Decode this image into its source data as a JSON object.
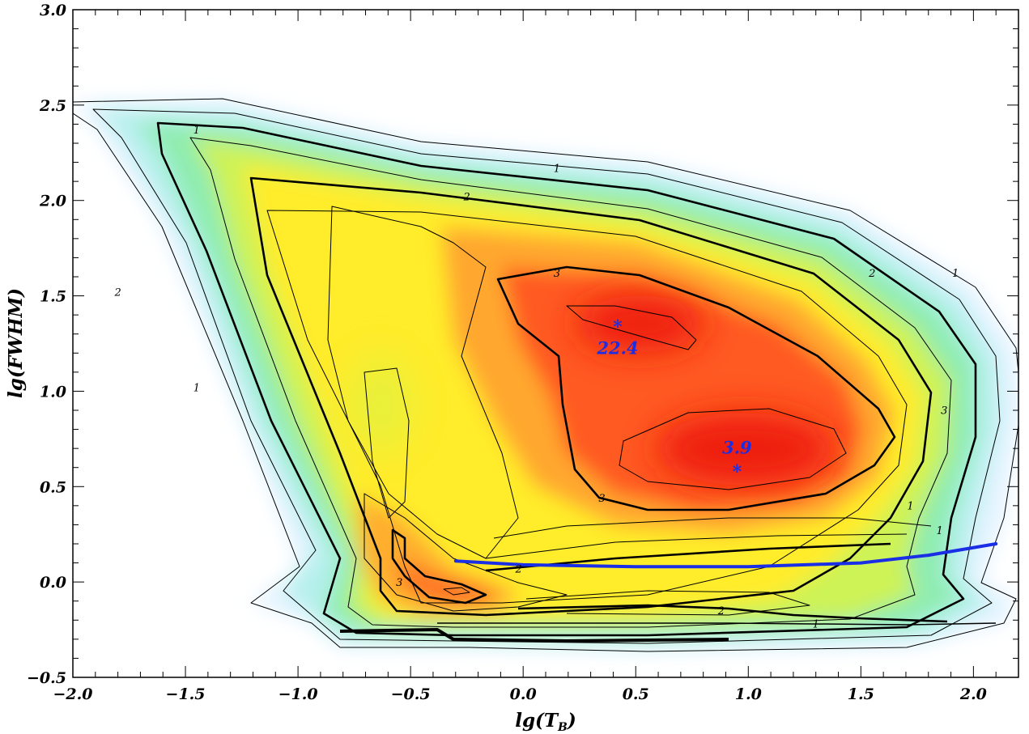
{
  "chart_data": {
    "type": "contour",
    "title": "",
    "xlabel": "lg(T",
    "xlabel_sub": "B",
    "xlabel_close": ")",
    "ylabel": "lg(FWHM)",
    "xlim": [
      -2.0,
      2.2
    ],
    "ylim": [
      -0.5,
      3.0
    ],
    "x_ticks": [
      -2.0,
      -1.5,
      -1.0,
      -0.5,
      0.0,
      0.5,
      1.0,
      1.5,
      2.0
    ],
    "x_tick_labels": [
      "−2.0",
      "−1.5",
      "−1.0",
      "−0.5",
      "0.0",
      "0.5",
      "1.0",
      "1.5",
      "2.0"
    ],
    "y_ticks": [
      -0.5,
      0.0,
      0.5,
      1.0,
      1.5,
      2.0,
      2.5,
      3.0
    ],
    "y_tick_labels": [
      "−0.5",
      "0.0",
      "0.5",
      "1.0",
      "1.5",
      "2.0",
      "2.5",
      "3.0"
    ],
    "contour_level_labels": [
      {
        "text": "1",
        "x": -1.45,
        "y": 2.35
      },
      {
        "text": "1",
        "x": 0.15,
        "y": 2.15
      },
      {
        "text": "2",
        "x": -0.25,
        "y": 2.0
      },
      {
        "text": "2",
        "x": -1.8,
        "y": 1.5
      },
      {
        "text": "1",
        "x": 1.92,
        "y": 1.6
      },
      {
        "text": "2",
        "x": 1.55,
        "y": 1.6
      },
      {
        "text": "1",
        "x": -1.45,
        "y": 1.0
      },
      {
        "text": "3",
        "x": 0.15,
        "y": 1.6
      },
      {
        "text": "3",
        "x": 1.87,
        "y": 0.88
      },
      {
        "text": "3",
        "x": 0.35,
        "y": 0.42
      },
      {
        "text": "1",
        "x": 1.72,
        "y": 0.38
      },
      {
        "text": "1",
        "x": 1.85,
        "y": 0.25
      },
      {
        "text": "2",
        "x": -0.02,
        "y": 0.05
      },
      {
        "text": "3",
        "x": -0.55,
        "y": -0.02
      },
      {
        "text": "2",
        "x": 0.88,
        "y": -0.17
      },
      {
        "text": "1",
        "x": 1.3,
        "y": -0.24
      }
    ],
    "density_peaks": [
      {
        "value": "22.4",
        "marker": "*",
        "x": 0.42,
        "y": 1.34
      },
      {
        "value": "3.9",
        "marker": "*",
        "x": 0.95,
        "y": 0.58
      }
    ],
    "series": [
      {
        "name": "",
        "type": "line",
        "color": "#1a2ee6",
        "points": [
          [
            -0.3,
            0.11
          ],
          [
            0.0,
            0.09
          ],
          [
            0.5,
            0.08
          ],
          [
            1.0,
            0.08
          ],
          [
            1.5,
            0.1
          ],
          [
            1.8,
            0.14
          ],
          [
            2.1,
            0.2
          ]
        ]
      }
    ],
    "colormap": [
      "#ffffff",
      "#dff3ff",
      "#b8f3ee",
      "#8ff0c0",
      "#a6f070",
      "#e4f542",
      "#ffee2e",
      "#ffc133",
      "#ff8a2e",
      "#ff4a22",
      "#ee1a10"
    ],
    "grid": false
  }
}
